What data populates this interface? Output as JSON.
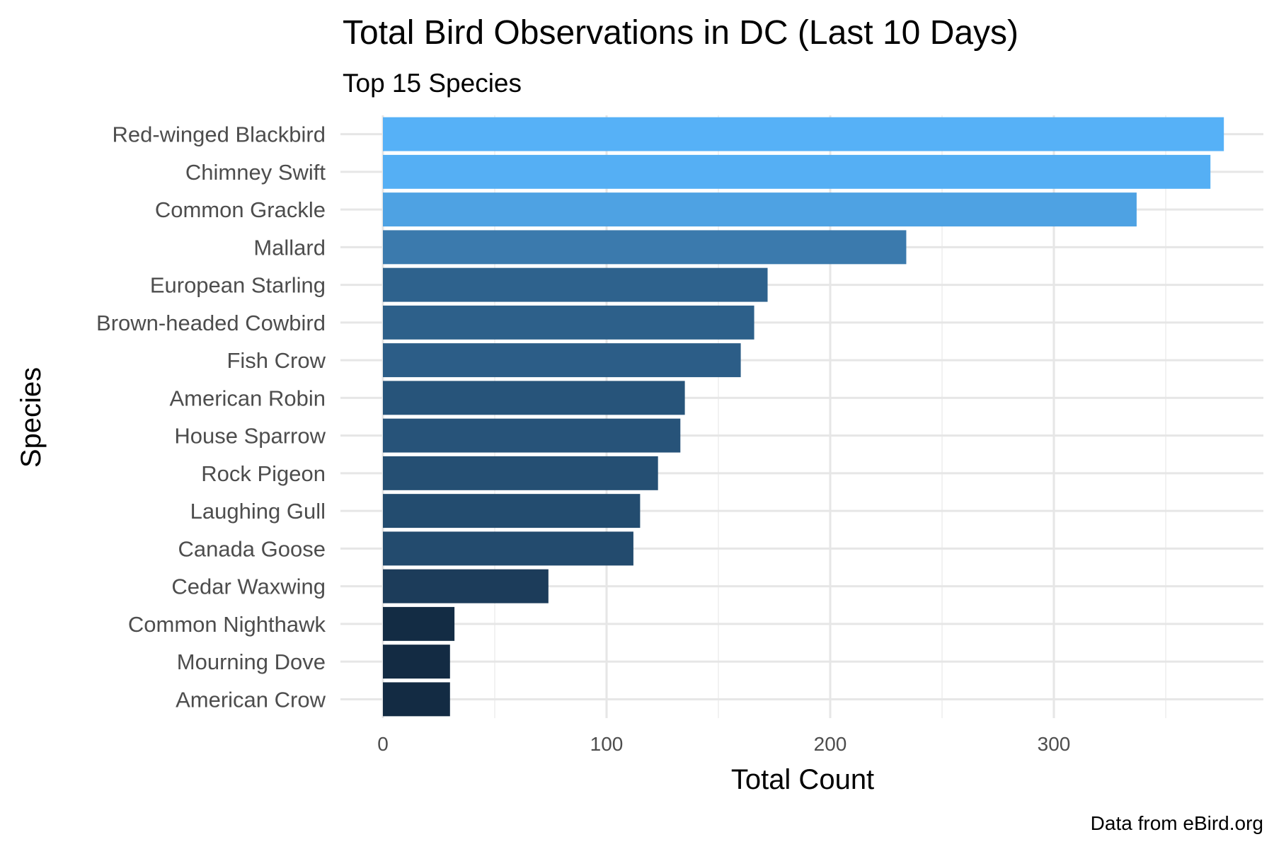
{
  "chart_data": {
    "type": "bar",
    "orientation": "horizontal",
    "title": "Total Bird Observations in DC (Last 10 Days)",
    "subtitle": "Top 15 Species",
    "xlabel": "Total Count",
    "ylabel": "Species",
    "caption": "Data from eBird.org",
    "xlim": [
      0,
      395
    ],
    "x_ticks": [
      0,
      100,
      200,
      300
    ],
    "grid": true,
    "legend": "none",
    "categories": [
      "Red-winged Blackbird",
      "Chimney Swift",
      "Common Grackle",
      "Mallard",
      "European Starling",
      "Brown-headed Cowbird",
      "Fish Crow",
      "American Robin",
      "House Sparrow",
      "Rock Pigeon",
      "Laughing Gull",
      "Canada Goose",
      "Cedar Waxwing",
      "Common Nighthawk",
      "Mourning Dove",
      "American Crow"
    ],
    "values": [
      376,
      370,
      337,
      234,
      172,
      166,
      160,
      135,
      133,
      123,
      115,
      112,
      74,
      32,
      30,
      30
    ],
    "color_low": "#132B43",
    "color_high": "#56B1F7"
  }
}
